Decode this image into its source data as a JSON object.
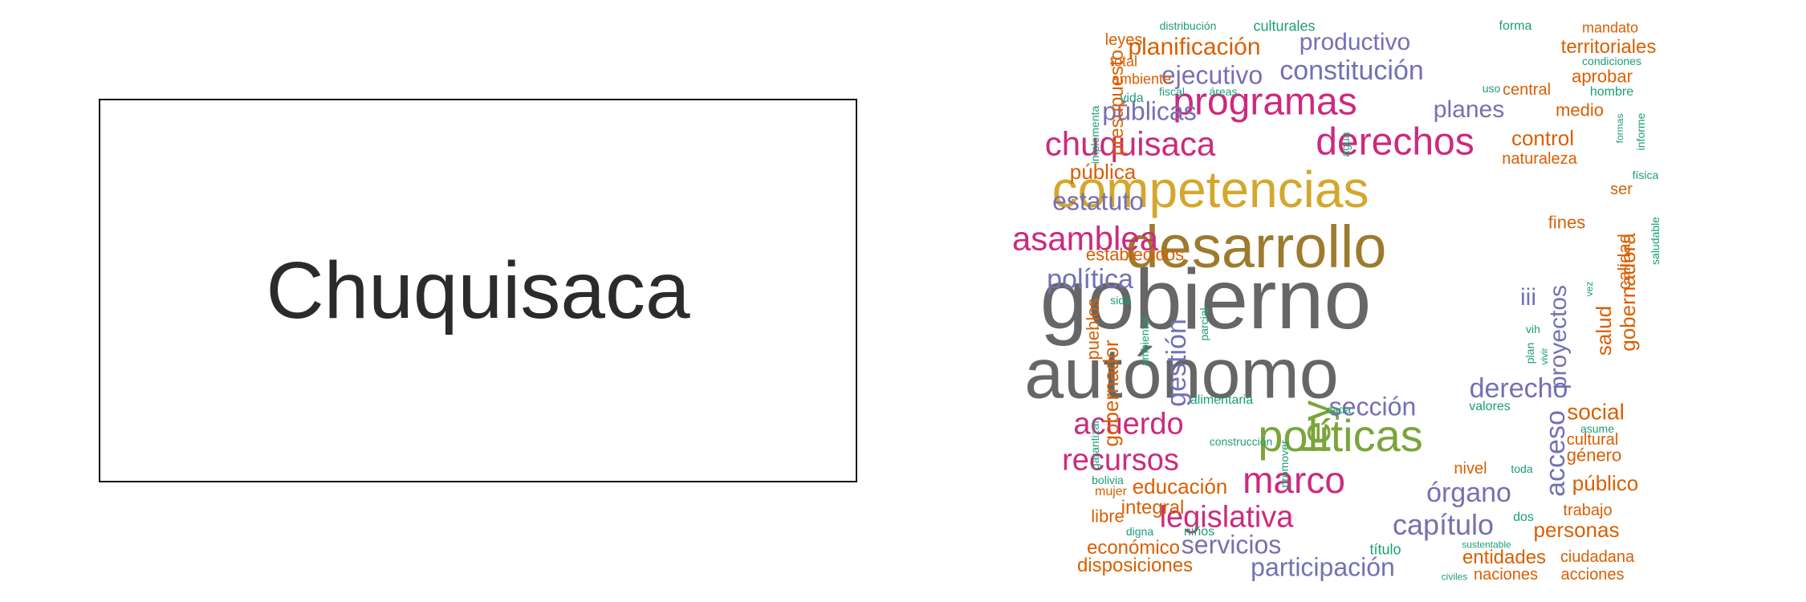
{
  "title": "Chuquisaca",
  "colors": {
    "gray": "#666666",
    "olive": "#9c7b2e",
    "gold": "#d4a72c",
    "green": "#7aa53a",
    "magenta": "#cc2a7e",
    "purple": "#7570b3",
    "orange": "#d95f02",
    "teal": "#1b9e77"
  },
  "wordcloud": {
    "words": [
      {
        "text": "gobierno",
        "color": "gray"
      },
      {
        "text": "autónomo",
        "color": "gray"
      },
      {
        "text": "desarrollo",
        "color": "olive"
      },
      {
        "text": "competencias",
        "color": "gold"
      },
      {
        "text": "políticas",
        "color": "green"
      },
      {
        "text": "ley",
        "color": "green"
      },
      {
        "text": "programas",
        "color": "magenta"
      },
      {
        "text": "derechos",
        "color": "magenta"
      },
      {
        "text": "chuquisaca",
        "color": "magenta"
      },
      {
        "text": "asamblea",
        "color": "magenta"
      },
      {
        "text": "marco",
        "color": "magenta"
      },
      {
        "text": "acuerdo",
        "color": "magenta"
      },
      {
        "text": "recursos",
        "color": "magenta"
      },
      {
        "text": "legislativa",
        "color": "magenta"
      },
      {
        "text": "constitución",
        "color": "purple"
      },
      {
        "text": "productivo",
        "color": "purple"
      },
      {
        "text": "ejecutivo",
        "color": "purple"
      },
      {
        "text": "públicas",
        "color": "purple"
      },
      {
        "text": "planes",
        "color": "purple"
      },
      {
        "text": "estatuto",
        "color": "purple"
      },
      {
        "text": "política",
        "color": "purple"
      },
      {
        "text": "gestión",
        "color": "purple"
      },
      {
        "text": "derecho",
        "color": "purple"
      },
      {
        "text": "proyectos",
        "color": "purple"
      },
      {
        "text": "iii",
        "color": "purple"
      },
      {
        "text": "acceso",
        "color": "purple"
      },
      {
        "text": "órgano",
        "color": "purple"
      },
      {
        "text": "capítulo",
        "color": "purple"
      },
      {
        "text": "sección",
        "color": "purple"
      },
      {
        "text": "servicios",
        "color": "purple"
      },
      {
        "text": "participación",
        "color": "purple"
      },
      {
        "text": "planificación",
        "color": "orange"
      },
      {
        "text": "presupuesto",
        "color": "orange"
      },
      {
        "text": "territoriales",
        "color": "orange"
      },
      {
        "text": "aprobar",
        "color": "orange"
      },
      {
        "text": "control",
        "color": "orange"
      },
      {
        "text": "naturaleza",
        "color": "orange"
      },
      {
        "text": "medio",
        "color": "orange"
      },
      {
        "text": "pública",
        "color": "orange"
      },
      {
        "text": "gobernadora",
        "color": "orange"
      },
      {
        "text": "salud",
        "color": "orange"
      },
      {
        "text": "calidad",
        "color": "orange"
      },
      {
        "text": "social",
        "color": "orange"
      },
      {
        "text": "cultural",
        "color": "orange"
      },
      {
        "text": "género",
        "color": "orange"
      },
      {
        "text": "público",
        "color": "orange"
      },
      {
        "text": "trabajo",
        "color": "orange"
      },
      {
        "text": "personas",
        "color": "orange"
      },
      {
        "text": "ciudadana",
        "color": "orange"
      },
      {
        "text": "acciones",
        "color": "orange"
      },
      {
        "text": "naciones",
        "color": "orange"
      },
      {
        "text": "entidades",
        "color": "orange"
      },
      {
        "text": "disposiciones",
        "color": "orange"
      },
      {
        "text": "económico",
        "color": "orange"
      },
      {
        "text": "integral",
        "color": "orange"
      },
      {
        "text": "educación",
        "color": "orange"
      },
      {
        "text": "libre",
        "color": "orange"
      },
      {
        "text": "gobernador",
        "color": "orange"
      },
      {
        "text": "pueblos",
        "color": "orange"
      },
      {
        "text": "establecidos",
        "color": "orange"
      },
      {
        "text": "leyes",
        "color": "orange"
      },
      {
        "text": "total",
        "color": "orange"
      },
      {
        "text": "ambiente",
        "color": "orange"
      },
      {
        "text": "central",
        "color": "orange"
      },
      {
        "text": "fines",
        "color": "orange"
      },
      {
        "text": "ser",
        "color": "orange"
      },
      {
        "text": "nivel",
        "color": "orange"
      },
      {
        "text": "mandato",
        "color": "orange"
      },
      {
        "text": "mujer",
        "color": "orange"
      },
      {
        "text": "distribución",
        "color": "teal"
      },
      {
        "text": "culturales",
        "color": "teal"
      },
      {
        "text": "forma",
        "color": "teal"
      },
      {
        "text": "condiciones",
        "color": "teal"
      },
      {
        "text": "hombre",
        "color": "teal"
      },
      {
        "text": "uso",
        "color": "teal"
      },
      {
        "text": "fiscal",
        "color": "teal"
      },
      {
        "text": "áreas",
        "color": "teal"
      },
      {
        "text": "vida",
        "color": "teal"
      },
      {
        "text": "implementa",
        "color": "teal"
      },
      {
        "text": "agua",
        "color": "teal"
      },
      {
        "text": "formas",
        "color": "teal"
      },
      {
        "text": "informe",
        "color": "teal"
      },
      {
        "text": "física",
        "color": "teal"
      },
      {
        "text": "saludable",
        "color": "teal"
      },
      {
        "text": "vez",
        "color": "teal"
      },
      {
        "text": "sida",
        "color": "teal"
      },
      {
        "text": "ambiental",
        "color": "teal"
      },
      {
        "text": "parcial",
        "color": "teal"
      },
      {
        "text": "vih",
        "color": "teal"
      },
      {
        "text": "plan",
        "color": "teal"
      },
      {
        "text": "vivir",
        "color": "teal"
      },
      {
        "text": "alimentaria",
        "color": "teal"
      },
      {
        "text": "cada",
        "color": "teal"
      },
      {
        "text": "valores",
        "color": "teal"
      },
      {
        "text": "asume",
        "color": "teal"
      },
      {
        "text": "construcción",
        "color": "teal"
      },
      {
        "text": "promover",
        "color": "teal"
      },
      {
        "text": "garantizar",
        "color": "teal"
      },
      {
        "text": "bolivia",
        "color": "teal"
      },
      {
        "text": "toda",
        "color": "teal"
      },
      {
        "text": "dos",
        "color": "teal"
      },
      {
        "text": "digna",
        "color": "teal"
      },
      {
        "text": "niños",
        "color": "teal"
      },
      {
        "text": "título",
        "color": "teal"
      },
      {
        "text": "sustentable",
        "color": "teal"
      },
      {
        "text": "civiles",
        "color": "teal"
      }
    ]
  }
}
